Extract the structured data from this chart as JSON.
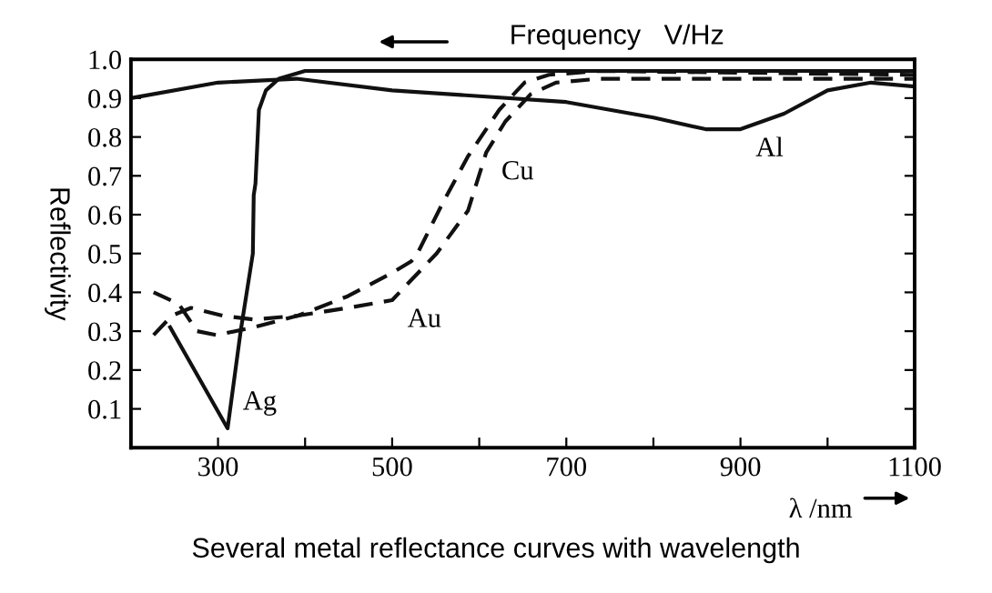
{
  "chart_data": {
    "type": "line",
    "title": "Frequency   V/Hz",
    "xlabel": "λ /nm",
    "ylabel": "Reflectivity",
    "xlim": [
      200,
      1100
    ],
    "ylim": [
      0,
      1.0
    ],
    "xticks": [
      300,
      {
        "value": 400,
        "label": null
      },
      500,
      {
        "value": 600,
        "label": null
      },
      700,
      {
        "value": 800,
        "label": null
      },
      900,
      {
        "value": 1000,
        "label": null
      },
      1100
    ],
    "yticks": [
      0.1,
      0.2,
      0.3,
      0.4,
      0.5,
      0.6,
      0.7,
      0.8,
      0.9,
      {
        "value": 1,
        "label": "1.0"
      }
    ],
    "grid": false,
    "legend": false,
    "marker": "none",
    "series": [
      {
        "color": "#111111",
        "line_style": "solid",
        "x": [
          245,
          311,
          326,
          340,
          341,
          343,
          347,
          355,
          370,
          400,
          1100
        ],
        "values": [
          0.31,
          0.05,
          0.3,
          0.5,
          0.65,
          0.68,
          0.87,
          0.92,
          0.95,
          0.97,
          0.97
        ]
      },
      {
        "color": "#111111",
        "line_style": "solid",
        "x": [
          200,
          300,
          390,
          500,
          700,
          800,
          860,
          900,
          950,
          1000,
          1050,
          1100
        ],
        "values": [
          0.9,
          0.94,
          0.95,
          0.92,
          0.89,
          0.85,
          0.82,
          0.82,
          0.86,
          0.92,
          0.94,
          0.93
        ]
      },
      {
        "color": "#111111",
        "line_style": "dashed",
        "x": [
          226,
          255,
          276,
          298,
          341,
          392,
          449,
          500,
          522,
          529,
          558,
          587,
          623,
          652,
          680,
          738,
          1100
        ],
        "values": [
          0.4,
          0.37,
          0.3,
          0.29,
          0.31,
          0.34,
          0.39,
          0.45,
          0.48,
          0.5,
          0.63,
          0.75,
          0.87,
          0.94,
          0.96,
          0.97,
          0.96
        ]
      },
      {
        "color": "#111111",
        "line_style": "dashed",
        "x": [
          226,
          247,
          269,
          305,
          341,
          392,
          449,
          500,
          551,
          587,
          608,
          630,
          659,
          688,
          738,
          1100
        ],
        "values": [
          0.29,
          0.34,
          0.36,
          0.34,
          0.33,
          0.34,
          0.36,
          0.38,
          0.5,
          0.61,
          0.76,
          0.84,
          0.91,
          0.94,
          0.95,
          0.95
        ]
      }
    ],
    "annotations": [
      {
        "text": "Ag",
        "x": 311,
        "y": 0.05
      },
      {
        "text": "Al",
        "x": 900,
        "y": 0.82
      },
      {
        "text": "Cu",
        "x": 608,
        "y": 0.76
      },
      {
        "text": "Au",
        "x": 500,
        "y": 0.38
      },
      "Several metal reflectance curves with wavelength"
    ]
  }
}
